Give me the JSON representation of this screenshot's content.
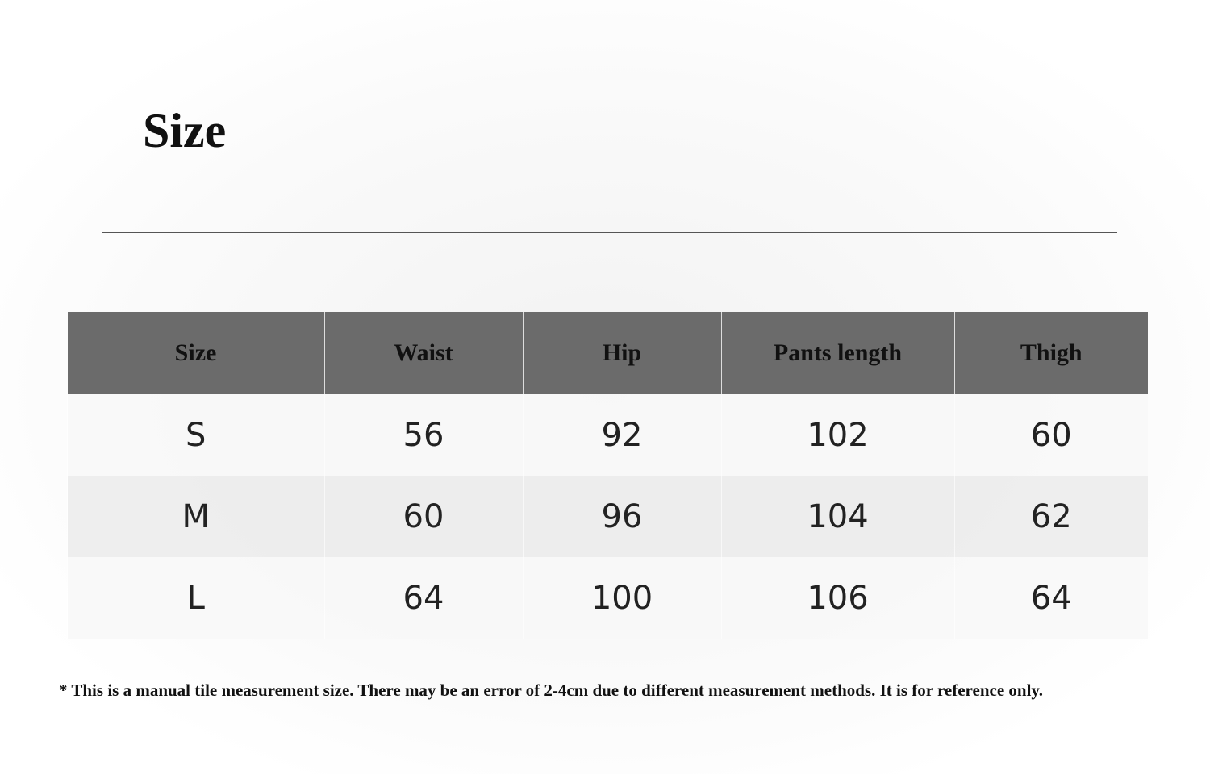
{
  "title": "Size",
  "table": {
    "headers": [
      "Size",
      "Waist",
      "Hip",
      "Pants length",
      "Thigh"
    ],
    "rows": [
      [
        "S",
        "56",
        "92",
        "102",
        "60"
      ],
      [
        "M",
        "60",
        "96",
        "104",
        "62"
      ],
      [
        "L",
        "64",
        "100",
        "106",
        "64"
      ]
    ]
  },
  "note": "* This is a manual tile measurement size. There may be an error of 2-4cm due to different measurement methods. It is for reference only."
}
